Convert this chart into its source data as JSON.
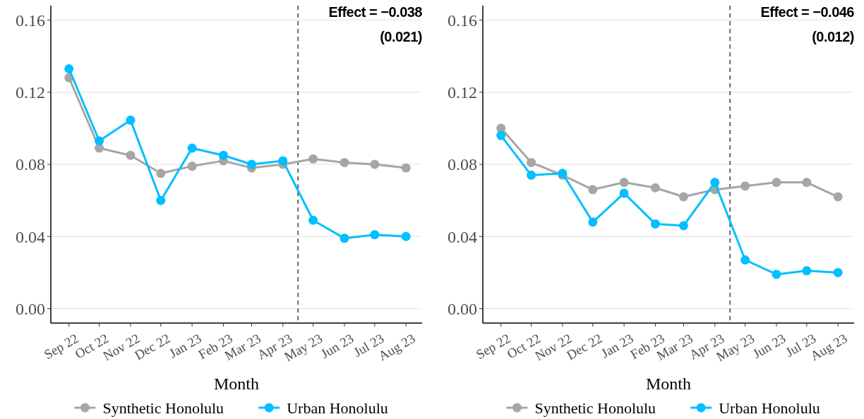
{
  "chart_data": [
    {
      "type": "line",
      "xlabel": "Month",
      "x": [
        "2022-09-01",
        "2022-10-01",
        "2022-11-01",
        "2022-12-01",
        "2023-01-01",
        "2023-02-01",
        "2023-03-01",
        "2023-04-01",
        "2023-05-01",
        "2023-06-01",
        "2023-07-01",
        "2023-08-01"
      ],
      "xlim": [
        "2022-08-14",
        "2023-08-17"
      ],
      "xticks": [
        {
          "value": "2022-09-01",
          "label": "Sep 22"
        },
        {
          "value": "2022-10-01",
          "label": "Oct 22"
        },
        {
          "value": "2022-11-01",
          "label": "Nov 22"
        },
        {
          "value": "2022-12-01",
          "label": "Dec 22"
        },
        {
          "value": "2023-01-01",
          "label": "Jan 23"
        },
        {
          "value": "2023-02-01",
          "label": "Feb 23"
        },
        {
          "value": "2023-03-01",
          "label": "Mar 23"
        },
        {
          "value": "2023-04-01",
          "label": "Apr 23"
        },
        {
          "value": "2023-05-01",
          "label": "May 23"
        },
        {
          "value": "2023-06-01",
          "label": "Jun 23"
        },
        {
          "value": "2023-07-01",
          "label": "Jul 23"
        },
        {
          "value": "2023-08-01",
          "label": "Aug 23"
        }
      ],
      "ylim": [
        -0.008,
        0.168
      ],
      "yticks": [
        {
          "value": 0,
          "label": "0.00"
        },
        {
          "value": 0.04,
          "label": "0.04"
        },
        {
          "value": 0.08,
          "label": "0.08"
        },
        {
          "value": 0.12,
          "label": "0.12"
        },
        {
          "value": 0.16,
          "label": "0.16"
        }
      ],
      "series": [
        {
          "name": "Synthetic Honolulu",
          "color": "#a6a6a6",
          "values": [
            0.128,
            0.089,
            0.085,
            0.075,
            0.079,
            0.082,
            0.078,
            0.08,
            0.083,
            0.081,
            0.08,
            0.078
          ]
        },
        {
          "name": "Urban Honolulu",
          "color": "#00bfff",
          "values": [
            0.133,
            0.093,
            0.1045,
            0.06,
            0.089,
            0.085,
            0.08,
            0.082,
            0.049,
            0.039,
            0.041,
            0.04
          ]
        }
      ],
      "ref_lines": [
        {
          "axis": "x",
          "value": "2023-04-16",
          "color": "#595959",
          "line_style": "dashed"
        }
      ],
      "annotations": [
        "Effect =  −0.038",
        "(0.021)"
      ],
      "grid": "y",
      "legend": "bottom",
      "marker": "circle",
      "line_style": "solid"
    },
    {
      "type": "line",
      "xlabel": "Month",
      "x": [
        "2022-09-01",
        "2022-10-01",
        "2022-11-01",
        "2022-12-01",
        "2023-01-01",
        "2023-02-01",
        "2023-03-01",
        "2023-04-01",
        "2023-05-01",
        "2023-06-01",
        "2023-07-01",
        "2023-08-01"
      ],
      "xlim": [
        "2022-08-14",
        "2023-08-17"
      ],
      "xticks": [
        {
          "value": "2022-09-01",
          "label": "Sep 22"
        },
        {
          "value": "2022-10-01",
          "label": "Oct 22"
        },
        {
          "value": "2022-11-01",
          "label": "Nov 22"
        },
        {
          "value": "2022-12-01",
          "label": "Dec 22"
        },
        {
          "value": "2023-01-01",
          "label": "Jan 23"
        },
        {
          "value": "2023-02-01",
          "label": "Feb 23"
        },
        {
          "value": "2023-03-01",
          "label": "Mar 23"
        },
        {
          "value": "2023-04-01",
          "label": "Apr 23"
        },
        {
          "value": "2023-05-01",
          "label": "May 23"
        },
        {
          "value": "2023-06-01",
          "label": "Jun 23"
        },
        {
          "value": "2023-07-01",
          "label": "Jul 23"
        },
        {
          "value": "2023-08-01",
          "label": "Aug 23"
        }
      ],
      "ylim": [
        -0.008,
        0.168
      ],
      "yticks": [
        {
          "value": 0,
          "label": "0.00"
        },
        {
          "value": 0.04,
          "label": "0.04"
        },
        {
          "value": 0.08,
          "label": "0.08"
        },
        {
          "value": 0.12,
          "label": "0.12"
        },
        {
          "value": 0.16,
          "label": "0.16"
        }
      ],
      "series": [
        {
          "name": "Synthetic Honolulu",
          "color": "#a6a6a6",
          "values": [
            0.1,
            0.081,
            0.074,
            0.066,
            0.07,
            0.067,
            0.062,
            0.066,
            0.068,
            0.07,
            0.07,
            0.062
          ]
        },
        {
          "name": "Urban Honolulu",
          "color": "#00bfff",
          "values": [
            0.096,
            0.074,
            0.075,
            0.048,
            0.064,
            0.047,
            0.046,
            0.07,
            0.027,
            0.019,
            0.021,
            0.02
          ]
        }
      ],
      "ref_lines": [
        {
          "axis": "x",
          "value": "2023-04-16",
          "color": "#595959",
          "line_style": "dashed"
        }
      ],
      "annotations": [
        "Effect =  −0.046",
        "(0.012)"
      ],
      "grid": "y",
      "legend": "bottom",
      "marker": "circle",
      "line_style": "solid"
    }
  ]
}
